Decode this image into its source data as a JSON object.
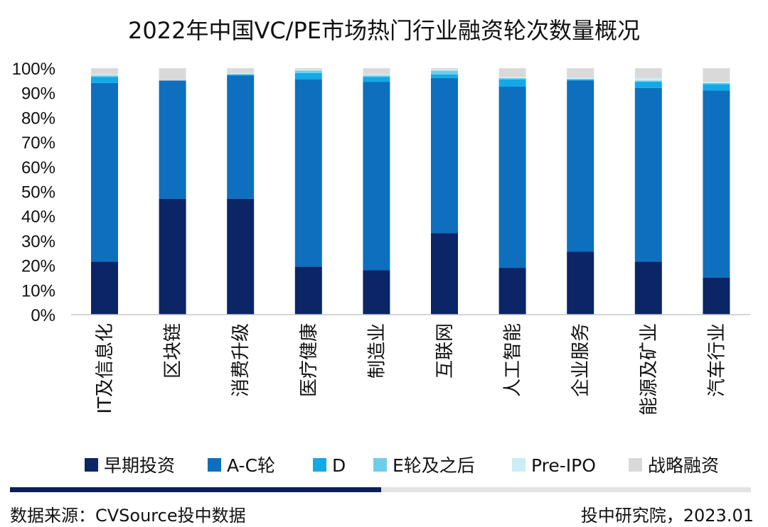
{
  "chart_data": {
    "type": "bar",
    "stacked": true,
    "title": "2022年中国VC/PE市场热门行业融资轮次数量概况",
    "categories": [
      "IT及信息化",
      "区块链",
      "消费升级",
      "医疗健康",
      "制造业",
      "互联网",
      "人工智能",
      "企业服务",
      "能源及矿业",
      "汽车行业"
    ],
    "yticks": [
      "0%",
      "10%",
      "20%",
      "30%",
      "40%",
      "50%",
      "60%",
      "70%",
      "80%",
      "90%",
      "100%"
    ],
    "ylim": [
      0,
      100
    ],
    "grid": false,
    "legend_position": "bottom",
    "series": [
      {
        "name": "早期投资",
        "color": "#0b2566",
        "values": [
          21.5,
          47,
          47,
          19.5,
          18,
          33,
          19,
          25.5,
          21.5,
          15
        ]
      },
      {
        "name": "A-C轮",
        "color": "#0e6fbe",
        "values": [
          72.5,
          48,
          50,
          76,
          76.5,
          63,
          73.5,
          69.5,
          70.5,
          76
        ]
      },
      {
        "name": "D",
        "color": "#13a9e8",
        "values": [
          2.5,
          0,
          0.5,
          2.5,
          2,
          1.5,
          3,
          0.5,
          2.5,
          2.5
        ]
      },
      {
        "name": "E轮及之后",
        "color": "#6fcde9",
        "values": [
          0.5,
          0,
          0,
          1,
          0.5,
          1.5,
          0.5,
          0,
          0.5,
          0.5
        ]
      },
      {
        "name": "Pre-IPO",
        "color": "#cbeef5",
        "values": [
          0.5,
          0,
          0.5,
          0.5,
          0.5,
          0.5,
          0.5,
          0.5,
          1,
          0.5
        ]
      },
      {
        "name": "战略融资",
        "color": "#d9d9d9",
        "values": [
          2.5,
          5,
          2,
          0.5,
          2.5,
          0.5,
          3.5,
          4,
          4,
          5.5
        ]
      }
    ]
  },
  "footer": {
    "source": "数据来源：CVSource投中数据",
    "credit": "投中研究院，2023.01"
  }
}
